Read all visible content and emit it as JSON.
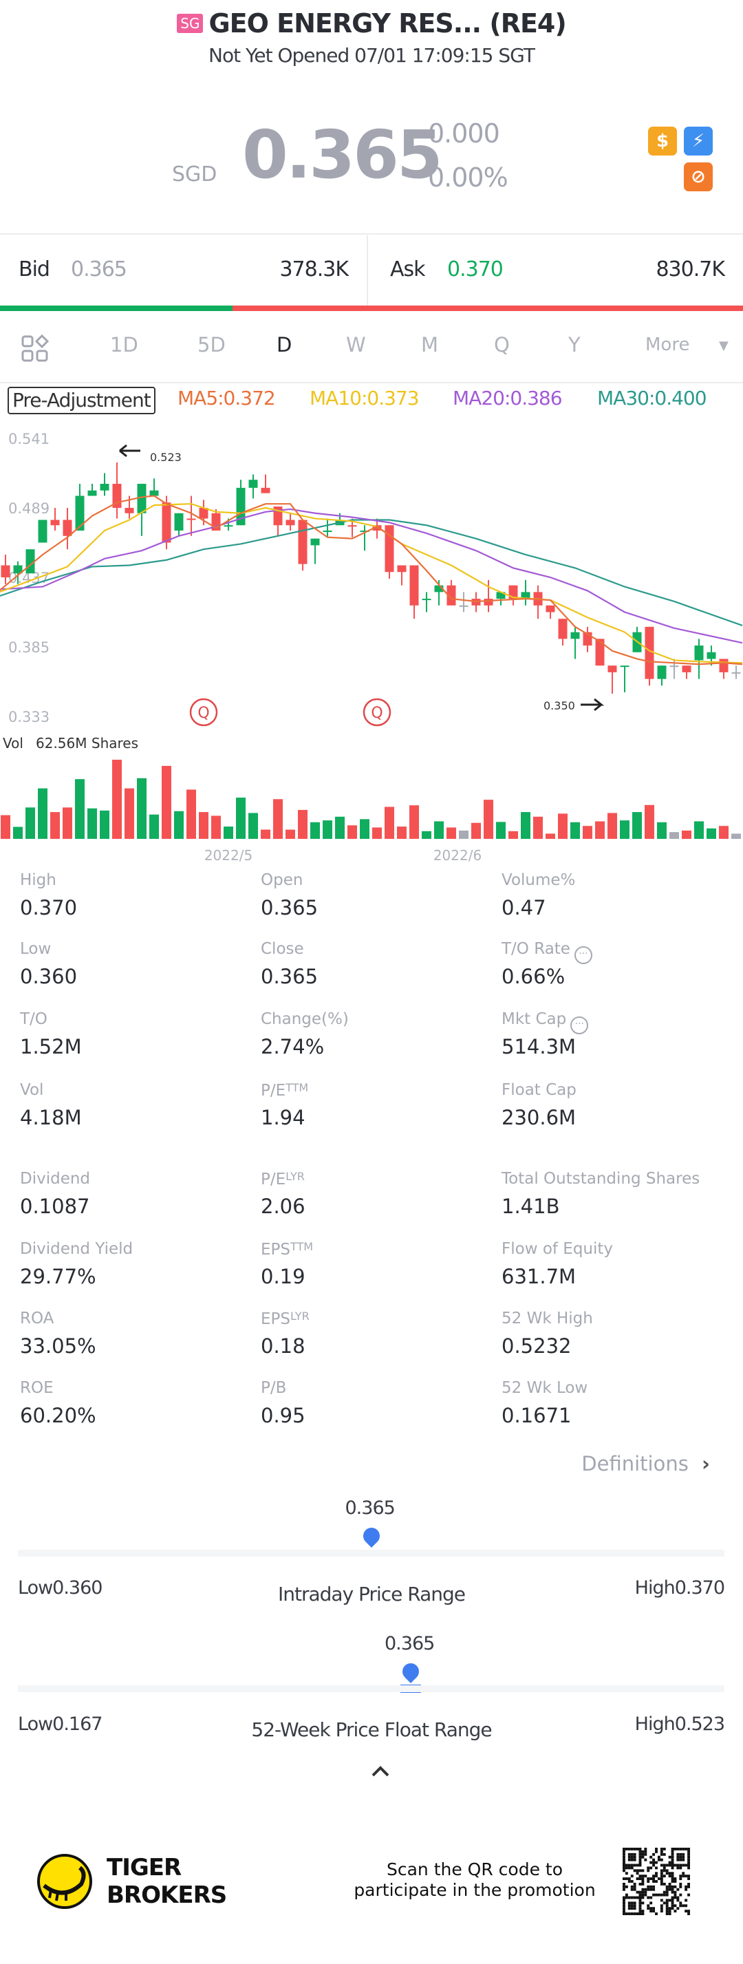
{
  "header": {
    "market_badge": "SG",
    "title": "GEO ENERGY RES... (RE4)",
    "status": "Not Yet Opened 07/01 17:09:15 SGT"
  },
  "quote": {
    "currency": "SGD",
    "price": "0.365",
    "change": "0.000",
    "change_pct": "0.00%",
    "icons": [
      "dollar-icon",
      "lightning-icon",
      "no-short-icon"
    ]
  },
  "bid_ask": {
    "bid_label": "Bid",
    "bid_price": "0.365",
    "bid_size": "378.3K",
    "ask_label": "Ask",
    "ask_price": "0.370",
    "ask_size": "830.7K",
    "bid_ratio": 0.313,
    "colors": {
      "bid": "#10ad5e",
      "ask": "#f45252",
      "ask_price": "#10ad5e"
    }
  },
  "tabs": {
    "items": [
      "1D",
      "5D",
      "D",
      "W",
      "M",
      "Q",
      "Y"
    ],
    "active": "D",
    "more_label": "More"
  },
  "indicators": {
    "adjustment": "Pre-Adjustment",
    "ma5": "MA5:0.372",
    "ma10": "MA10:0.373",
    "ma20": "MA20:0.386",
    "ma30": "MA30:0.400"
  },
  "chart_data": {
    "type": "candlestick",
    "y_ticks": [
      "0.541",
      "0.489",
      "0.437",
      "0.385",
      "0.333"
    ],
    "ylim": [
      0.333,
      0.541
    ],
    "x_labels": [
      {
        "label": "2022/5",
        "index": 18
      },
      {
        "label": "2022/6",
        "index": 36.5
      }
    ],
    "high_marker": {
      "label": "0.523",
      "index": 9
    },
    "low_marker": {
      "label": "0.350",
      "index": 49
    },
    "event_markers": [
      {
        "label": "Q",
        "index": 16
      },
      {
        "label": "Q",
        "index": 30
      }
    ],
    "volume_label": "Vol",
    "volume_value": "62.56M Shares",
    "colors": {
      "up": "#10ad5e",
      "down": "#f45252",
      "flat": "#a8abb3",
      "ma5": "#e8703a",
      "ma10": "#eec31c",
      "ma20": "#a35ad6",
      "ma30": "#2b9a8c"
    },
    "candles_ohlc_dir_vol": [
      [
        0.446,
        0.454,
        0.432,
        0.437,
        "d",
        77
      ],
      [
        0.44,
        0.449,
        0.432,
        0.446,
        "u",
        39
      ],
      [
        0.44,
        0.458,
        0.44,
        0.458,
        "u",
        102
      ],
      [
        0.463,
        0.48,
        0.463,
        0.48,
        "u",
        164
      ],
      [
        0.48,
        0.489,
        0.472,
        0.476,
        "d",
        87
      ],
      [
        0.48,
        0.489,
        0.458,
        0.468,
        "d",
        102
      ],
      [
        0.472,
        0.507,
        0.472,
        0.498,
        "u",
        194
      ],
      [
        0.498,
        0.507,
        0.498,
        0.502,
        "u",
        99
      ],
      [
        0.502,
        0.515,
        0.498,
        0.507,
        "u",
        92
      ],
      [
        0.507,
        0.523,
        0.481,
        0.489,
        "d",
        257
      ],
      [
        0.489,
        0.498,
        0.481,
        0.485,
        "d",
        164
      ],
      [
        0.485,
        0.507,
        0.468,
        0.507,
        "u",
        197
      ],
      [
        0.498,
        0.511,
        0.498,
        0.502,
        "u",
        79
      ],
      [
        0.493,
        0.498,
        0.458,
        0.463,
        "d",
        237
      ],
      [
        0.472,
        0.485,
        0.468,
        0.485,
        "u",
        90
      ],
      [
        0.481,
        0.498,
        0.468,
        0.48,
        "d",
        160
      ],
      [
        0.489,
        0.495,
        0.476,
        0.481,
        "d",
        87
      ],
      [
        0.485,
        0.488,
        0.472,
        0.472,
        "d",
        75
      ],
      [
        0.476,
        0.481,
        0.472,
        0.476,
        "u",
        40
      ],
      [
        0.476,
        0.51,
        0.476,
        0.504,
        "u",
        134
      ],
      [
        0.504,
        0.514,
        0.496,
        0.51,
        "u",
        84
      ],
      [
        0.504,
        0.514,
        0.5,
        0.5,
        "d",
        30
      ],
      [
        0.49,
        0.49,
        0.468,
        0.476,
        "d",
        129
      ],
      [
        0.48,
        0.485,
        0.472,
        0.476,
        "d",
        30
      ],
      [
        0.48,
        0.48,
        0.442,
        0.447,
        "d",
        94
      ],
      [
        0.461,
        0.466,
        0.447,
        0.466,
        "u",
        54
      ],
      [
        0.471,
        0.481,
        0.467,
        0.472,
        "u",
        60
      ],
      [
        0.476,
        0.485,
        0.476,
        0.48,
        "u",
        72
      ],
      [
        0.476,
        0.481,
        0.467,
        0.476,
        "d",
        44
      ],
      [
        0.471,
        0.476,
        0.457,
        0.472,
        "u",
        64
      ],
      [
        0.476,
        0.481,
        0.466,
        0.472,
        "d",
        37
      ],
      [
        0.476,
        0.476,
        0.436,
        0.441,
        "d",
        104
      ],
      [
        0.446,
        0.446,
        0.431,
        0.441,
        "d",
        40
      ],
      [
        0.446,
        0.446,
        0.406,
        0.416,
        "d",
        109
      ],
      [
        0.421,
        0.426,
        0.411,
        0.421,
        "u",
        25
      ],
      [
        0.426,
        0.435,
        0.416,
        0.431,
        "u",
        57
      ],
      [
        0.431,
        0.435,
        0.416,
        0.416,
        "d",
        37
      ],
      [
        0.416,
        0.426,
        0.411,
        0.416,
        "f",
        27
      ],
      [
        0.421,
        0.426,
        0.411,
        0.416,
        "d",
        52
      ],
      [
        0.421,
        0.435,
        0.411,
        0.416,
        "d",
        127
      ],
      [
        0.421,
        0.426,
        0.416,
        0.426,
        "u",
        55
      ],
      [
        0.431,
        0.431,
        0.416,
        0.421,
        "d",
        25
      ],
      [
        0.421,
        0.435,
        0.416,
        0.426,
        "u",
        87
      ],
      [
        0.426,
        0.431,
        0.406,
        0.416,
        "d",
        72
      ],
      [
        0.416,
        0.416,
        0.406,
        0.411,
        "d",
        17
      ],
      [
        0.406,
        0.406,
        0.386,
        0.391,
        "d",
        82
      ],
      [
        0.391,
        0.4,
        0.376,
        0.396,
        "u",
        54
      ],
      [
        0.396,
        0.4,
        0.381,
        0.386,
        "d",
        42
      ],
      [
        0.391,
        0.391,
        0.371,
        0.371,
        "d",
        57
      ],
      [
        0.371,
        0.371,
        0.35,
        0.366,
        "d",
        84
      ],
      [
        0.371,
        0.371,
        0.351,
        0.371,
        "u",
        60
      ],
      [
        0.381,
        0.4,
        0.381,
        0.396,
        "u",
        87
      ],
      [
        0.4,
        0.4,
        0.356,
        0.361,
        "d",
        110
      ],
      [
        0.361,
        0.371,
        0.356,
        0.371,
        "u",
        54
      ],
      [
        0.371,
        0.376,
        0.361,
        0.371,
        "f",
        22
      ],
      [
        0.371,
        0.371,
        0.361,
        0.366,
        "d",
        27
      ],
      [
        0.375,
        0.391,
        0.361,
        0.386,
        "u",
        57
      ],
      [
        0.376,
        0.386,
        0.371,
        0.381,
        "u",
        34
      ],
      [
        0.376,
        0.376,
        0.361,
        0.366,
        "d",
        42
      ],
      [
        0.366,
        0.371,
        0.361,
        0.366,
        "f",
        17
      ]
    ],
    "ma_series": {
      "ma5": [
        [
          -0.5,
          0.427
        ],
        [
          3,
          0.454
        ],
        [
          5,
          0.467
        ],
        [
          7,
          0.483
        ],
        [
          9,
          0.493
        ],
        [
          11,
          0.497
        ],
        [
          12,
          0.498
        ],
        [
          13,
          0.492
        ],
        [
          15,
          0.485
        ],
        [
          17,
          0.474
        ],
        [
          19,
          0.485
        ],
        [
          21,
          0.492
        ],
        [
          23,
          0.492
        ],
        [
          24,
          0.48
        ],
        [
          26,
          0.467
        ],
        [
          28,
          0.466
        ],
        [
          30,
          0.475
        ],
        [
          32,
          0.462
        ],
        [
          34,
          0.442
        ],
        [
          36,
          0.421
        ],
        [
          38,
          0.419
        ],
        [
          40,
          0.42
        ],
        [
          42,
          0.421
        ],
        [
          44,
          0.42
        ],
        [
          46,
          0.4
        ],
        [
          48,
          0.389
        ],
        [
          49,
          0.382
        ],
        [
          51,
          0.376
        ],
        [
          52,
          0.374
        ],
        [
          54,
          0.373
        ],
        [
          56,
          0.372
        ],
        [
          58,
          0.373
        ],
        [
          59.5,
          0.372
        ]
      ],
      "ma10": [
        [
          -0.5,
          0.426
        ],
        [
          3,
          0.438
        ],
        [
          5,
          0.445
        ],
        [
          8,
          0.472
        ],
        [
          10,
          0.48
        ],
        [
          12,
          0.491
        ],
        [
          15,
          0.492
        ],
        [
          17,
          0.486
        ],
        [
          19,
          0.485
        ],
        [
          21,
          0.489
        ],
        [
          23,
          0.485
        ],
        [
          25,
          0.481
        ],
        [
          28,
          0.479
        ],
        [
          30,
          0.475
        ],
        [
          32,
          0.462
        ],
        [
          34,
          0.454
        ],
        [
          36,
          0.446
        ],
        [
          39,
          0.43
        ],
        [
          41,
          0.422
        ],
        [
          44,
          0.42
        ],
        [
          47,
          0.407
        ],
        [
          50,
          0.396
        ],
        [
          52,
          0.382
        ],
        [
          54,
          0.375
        ],
        [
          56,
          0.374
        ],
        [
          59.5,
          0.373
        ]
      ],
      "ma20": [
        [
          -0.5,
          0.428
        ],
        [
          3,
          0.43
        ],
        [
          6,
          0.442
        ],
        [
          8,
          0.451
        ],
        [
          11,
          0.457
        ],
        [
          14,
          0.468
        ],
        [
          17,
          0.475
        ],
        [
          19,
          0.481
        ],
        [
          21,
          0.486
        ],
        [
          23,
          0.488
        ],
        [
          25,
          0.485
        ],
        [
          28,
          0.482
        ],
        [
          31,
          0.478
        ],
        [
          34,
          0.47
        ],
        [
          38,
          0.457
        ],
        [
          41,
          0.444
        ],
        [
          44,
          0.437
        ],
        [
          47,
          0.427
        ],
        [
          50,
          0.411
        ],
        [
          54,
          0.399
        ],
        [
          56,
          0.395
        ],
        [
          59.5,
          0.388
        ]
      ],
      "ma30": [
        [
          -0.5,
          0.423
        ],
        [
          3,
          0.434
        ],
        [
          7,
          0.445
        ],
        [
          10,
          0.446
        ],
        [
          13,
          0.45
        ],
        [
          16,
          0.458
        ],
        [
          19,
          0.462
        ],
        [
          22,
          0.468
        ],
        [
          25,
          0.474
        ],
        [
          28,
          0.48
        ],
        [
          31,
          0.48
        ],
        [
          34,
          0.476
        ],
        [
          38,
          0.466
        ],
        [
          42,
          0.454
        ],
        [
          46,
          0.444
        ],
        [
          50,
          0.43
        ],
        [
          54,
          0.419
        ],
        [
          59.5,
          0.401
        ]
      ]
    }
  },
  "stats": {
    "rows": [
      [
        {
          "label": "High",
          "value": "0.370"
        },
        {
          "label": "Open",
          "value": "0.365"
        },
        {
          "label": "Volume%",
          "value": "0.47"
        }
      ],
      [
        {
          "label": "Low",
          "value": "0.360"
        },
        {
          "label": "Close",
          "value": "0.365"
        },
        {
          "label": "T/O Rate",
          "value": "0.66%",
          "info": true
        }
      ],
      [
        {
          "label": "T/O",
          "value": "1.52M"
        },
        {
          "label": "Change(%)",
          "value": "2.74%"
        },
        {
          "label": "Mkt Cap",
          "value": "514.3M",
          "info": true
        }
      ],
      [
        {
          "label": "Vol",
          "value": "4.18M"
        },
        {
          "label": "P/E",
          "sup": "TTM",
          "value": "1.94"
        },
        {
          "label": "Float Cap",
          "value": "230.6M"
        }
      ],
      [
        {
          "label": "Dividend",
          "value": "0.1087"
        },
        {
          "label": "P/E",
          "sup": "LYR",
          "value": "2.06"
        },
        {
          "label": "Total Outstanding Shares",
          "value": "1.41B"
        }
      ],
      [
        {
          "label": "Dividend Yield",
          "value": "29.77%"
        },
        {
          "label": "EPS",
          "sup": "TTM",
          "value": "0.19"
        },
        {
          "label": "Flow of Equity",
          "value": "631.7M"
        }
      ],
      [
        {
          "label": "ROA",
          "value": "33.05%"
        },
        {
          "label": "EPS",
          "sup": "LYR",
          "value": "0.18"
        },
        {
          "label": "52 Wk High",
          "value": "0.5232"
        }
      ],
      [
        {
          "label": "ROE",
          "value": "60.20%"
        },
        {
          "label": "P/B",
          "value": "0.95"
        },
        {
          "label": "52 Wk Low",
          "value": "0.1671"
        }
      ]
    ],
    "info_glyph": "···",
    "definitions_label": "Definitions"
  },
  "ranges": {
    "intraday": {
      "title": "Intraday Price Range",
      "current": "0.365",
      "low_label": "Low0.360",
      "high_label": "High0.370",
      "position": 0.5
    },
    "week52": {
      "title": "52-Week Price Float Range",
      "current": "0.365",
      "low_label": "Low0.167",
      "high_label": "High0.523",
      "position": 0.556
    },
    "accent": "#3f7cf0"
  },
  "footer": {
    "brand_line1": "TIGER",
    "brand_line2": "BROKERS",
    "promo_line1": "Scan the QR code to",
    "promo_line2": "participate in the promotion"
  }
}
